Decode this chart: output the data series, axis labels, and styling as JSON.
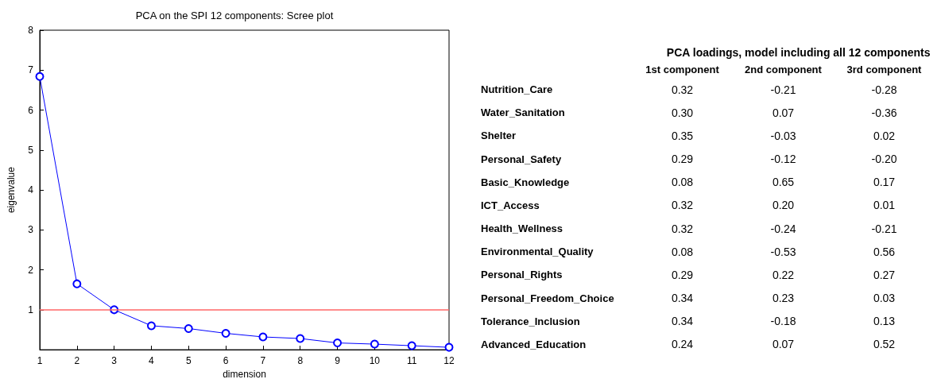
{
  "chart_data": [
    {
      "type": "line",
      "title": "PCA on the SPI 12 components: Scree plot",
      "xlabel": "dimension",
      "ylabel": "eigenvalue",
      "x": [
        1,
        2,
        3,
        4,
        5,
        6,
        7,
        8,
        9,
        10,
        11,
        12
      ],
      "series": [
        {
          "color": "#0000ff",
          "values": [
            6.84,
            1.65,
            1.0,
            0.6,
            0.53,
            0.41,
            0.32,
            0.28,
            0.17,
            0.14,
            0.1,
            0.06
          ]
        }
      ],
      "marker": "circle",
      "line_style": "solid",
      "xlim": [
        1,
        12
      ],
      "xticks": [
        1,
        2,
        3,
        4,
        5,
        6,
        7,
        8,
        9,
        10,
        11,
        12
      ],
      "ylim": [
        0,
        8
      ],
      "yticks": [
        1,
        2,
        3,
        4,
        5,
        6,
        7,
        8
      ],
      "ref_lines": [
        {
          "axis": "y",
          "value": 1,
          "color": "#ff6666"
        }
      ],
      "grid": false
    },
    {
      "type": "heatmap",
      "title": "PCA loadings, model including all 12 components",
      "categories": [
        "1st component",
        "2nd component",
        "3rd component"
      ],
      "y_categories": [
        "Nutrition_Care",
        "Water_Sanitation",
        "Shelter",
        "Personal_Safety",
        "Basic_Knowledge",
        "ICT_Access",
        "Health_Wellness",
        "Environmental_Quality",
        "Personal_Rights",
        "Personal_Freedom_Choice",
        "Tolerance_Inclusion",
        "Advanced_Education"
      ],
      "cells": [
        [
          0.32,
          -0.21,
          -0.28
        ],
        [
          0.3,
          0.07,
          -0.36
        ],
        [
          0.35,
          -0.03,
          0.02
        ],
        [
          0.29,
          -0.12,
          -0.2
        ],
        [
          0.08,
          0.65,
          0.17
        ],
        [
          0.32,
          0.2,
          0.01
        ],
        [
          0.32,
          -0.24,
          -0.21
        ],
        [
          0.08,
          -0.53,
          0.56
        ],
        [
          0.29,
          0.22,
          0.27
        ],
        [
          0.34,
          0.23,
          0.03
        ],
        [
          0.34,
          -0.18,
          0.13
        ],
        [
          0.24,
          0.07,
          0.52
        ]
      ],
      "cell_labels": [
        [
          "0.32",
          "-0.21",
          "-0.28"
        ],
        [
          "0.30",
          "0.07",
          "-0.36"
        ],
        [
          "0.35",
          "-0.03",
          "0.02"
        ],
        [
          "0.29",
          "-0.12",
          "-0.20"
        ],
        [
          "0.08",
          "0.65",
          "0.17"
        ],
        [
          "0.32",
          "0.20",
          "0.01"
        ],
        [
          "0.32",
          "-0.24",
          "-0.21"
        ],
        [
          "0.08",
          "-0.53",
          "0.56"
        ],
        [
          "0.29",
          "0.22",
          "0.27"
        ],
        [
          "0.34",
          "0.23",
          "0.03"
        ],
        [
          "0.34",
          "-0.18",
          "0.13"
        ],
        [
          "0.24",
          "0.07",
          "0.52"
        ]
      ],
      "data_labels": true
    }
  ]
}
